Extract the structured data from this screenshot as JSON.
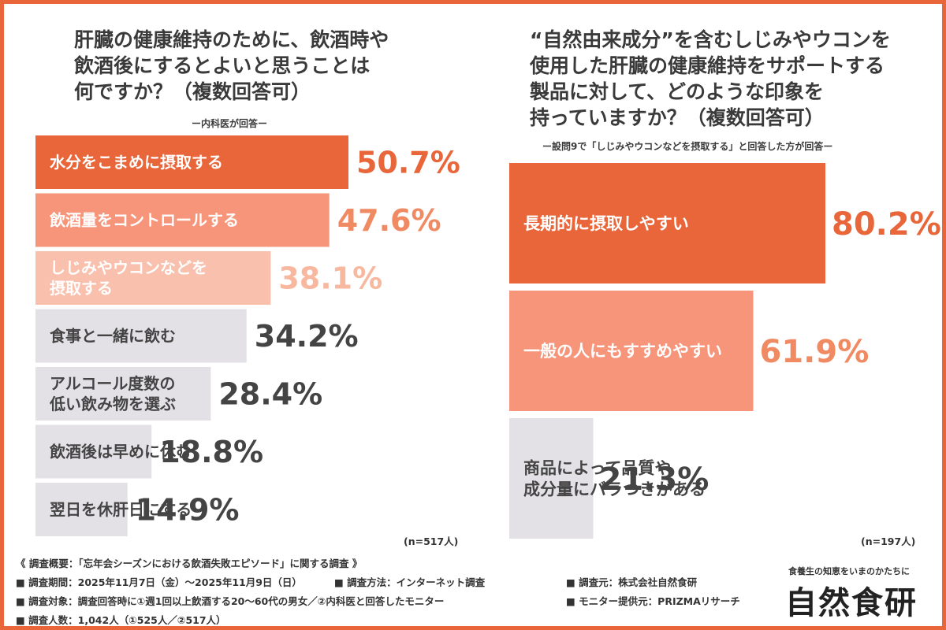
{
  "chart_data": [
    {
      "type": "bar",
      "orientation": "horizontal",
      "title": "肝臓の健康維持のために、飲酒時や\n飲酒後にするとよいと思うことは\n何ですか？（複数回答可）",
      "subtitle": "ー内科医が回答ー",
      "n_label": "(n=517人)",
      "categories": [
        "水分をこまめに摂取する",
        "飲酒量をコントロールする",
        "しじみやウコンなどを\n摂取する",
        "食事と一緒に飲む",
        "アルコール度数の\n低い飲み物を選ぶ",
        "飲酒後は早めに休む",
        "翌日を休肝日にする"
      ],
      "values": [
        50.7,
        47.6,
        38.1,
        34.2,
        28.4,
        18.8,
        14.9
      ],
      "value_labels": [
        "50.7%",
        "47.6%",
        "38.1%",
        "34.2%",
        "28.4%",
        "18.8%",
        "14.9%"
      ],
      "bar_colors": [
        "#e8663a",
        "#f6957a",
        "#f9c0ad",
        "#e3e1e6",
        "#e3e1e6",
        "#e3e1e6",
        "#e3e1e6"
      ],
      "value_colors": [
        "#e8663a",
        "#f08a63",
        "#f7b89f",
        "#444444",
        "#444444",
        "#444444",
        "#444444"
      ],
      "label_colors": [
        "#ffffff",
        "#ffffff",
        "#ffffff",
        "#444444",
        "#444444",
        "#444444",
        "#444444"
      ],
      "xlim": [
        0,
        100
      ]
    },
    {
      "type": "bar",
      "orientation": "horizontal",
      "title": "“自然由来成分”を含むしじみやウコンを\n使用した肝臓の健康維持をサポートする\n製品に対して、どのような印象を\n持っていますか？（複数回答可）",
      "subtitle": "ー設問9で「しじみやウコンなどを摂取する」と回答した方が回答ー",
      "n_label": "(n=197人)",
      "categories": [
        "長期的に摂取しやすい",
        "一般の人にもすすめやすい",
        "商品によって品質や\n成分量にバラつきがある"
      ],
      "values": [
        80.2,
        61.9,
        21.3
      ],
      "value_labels": [
        "80.2%",
        "61.9%",
        "21.3%"
      ],
      "bar_colors": [
        "#e8663a",
        "#f6957a",
        "#e3e1e6"
      ],
      "value_colors": [
        "#e8663a",
        "#f08a63",
        "#444444"
      ],
      "label_colors": [
        "#ffffff",
        "#ffffff",
        "#444444"
      ],
      "xlim": [
        0,
        100
      ]
    }
  ],
  "footer": {
    "heading": "《 調査概要：「忘年会シーズンにおける飲酒失敗エピソード」に関する調査 》",
    "items": [
      "■ 調査期間：2025年11月7日（金）〜2025年11月9日（日）",
      "■ 調査方法：インターネット調査",
      "■ 調査元：株式会社自然食研",
      "■ 調査対象：調査回答時に①週1回以上飲酒する20〜60代の男女／②内科医と回答したモニター",
      "■ モニター提供元：PRIZMAリサーチ",
      "■ 調査人数：1,042人（①525人／②517人）"
    ]
  },
  "brand": {
    "tagline": "食養生の知恵をいまのかたちに",
    "name": "自然食研"
  },
  "colors": {
    "accent": "#e8663a",
    "border": "#e8663a"
  }
}
